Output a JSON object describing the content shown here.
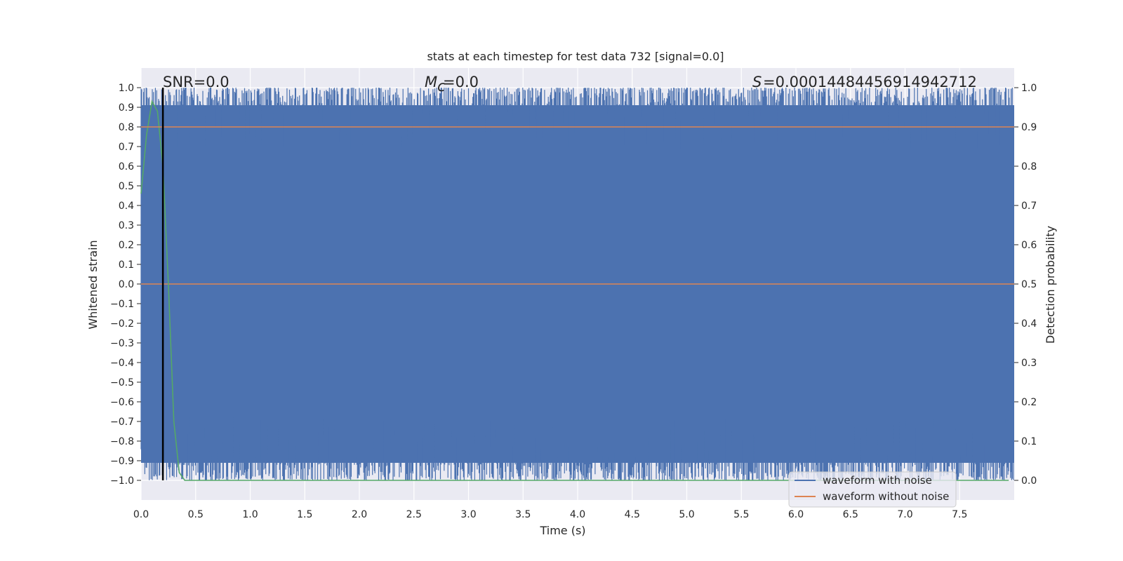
{
  "chart_data": {
    "type": "line",
    "title": "stats at each timestep for test data 732 [signal=0.0]",
    "xlabel": "Time (s)",
    "ylabel": "Whitened strain",
    "y2label": "Detection probability",
    "xlim": [
      0.0,
      8.0
    ],
    "ylim": [
      -1.1,
      1.1
    ],
    "y2lim": [
      -0.05,
      1.05
    ],
    "x_ticks": [
      "0.0",
      "0.5",
      "1.0",
      "1.5",
      "2.0",
      "2.5",
      "3.0",
      "3.5",
      "4.0",
      "4.5",
      "5.0",
      "5.5",
      "6.0",
      "6.5",
      "7.0",
      "7.5"
    ],
    "y_ticks": [
      "1.0",
      "0.9",
      "0.8",
      "0.7",
      "0.6",
      "0.5",
      "0.4",
      "0.3",
      "0.2",
      "0.1",
      "0.0",
      "−0.1",
      "−0.2",
      "−0.3",
      "−0.4",
      "−0.5",
      "−0.6",
      "−0.7",
      "−0.8",
      "−0.9",
      "−1.0"
    ],
    "y2_ticks": [
      "1.0",
      "0.9",
      "0.8",
      "0.7",
      "0.6",
      "0.5",
      "0.4",
      "0.3",
      "0.2",
      "0.1",
      "0.0"
    ],
    "grid": true,
    "annotations": {
      "snr": "SNR=0.0",
      "mc": "=0.0",
      "s": "=0.00014484456914942712"
    },
    "series": [
      {
        "name": "waveform with noise",
        "color": "#4C72B0",
        "kind": "noise",
        "x_range": [
          0.0,
          8.0
        ],
        "y_range": [
          -1.0,
          1.0
        ]
      },
      {
        "name": "waveform without noise",
        "color": "#DD8452",
        "x": [
          0.0,
          8.0
        ],
        "y": [
          0.0,
          0.0
        ]
      },
      {
        "color": "#55A868",
        "axis": "right",
        "x": [
          0.0,
          0.05,
          0.1,
          0.15,
          0.2,
          0.25,
          0.3,
          0.35,
          0.4,
          0.5,
          1.0,
          2.0,
          3.0,
          4.0,
          5.0,
          6.0,
          7.0,
          7.95
        ],
        "y": [
          0.73,
          0.88,
          0.965,
          0.94,
          0.8,
          0.5,
          0.15,
          0.02,
          0.0,
          0.0,
          0.0,
          0.0,
          0.0,
          0.0,
          0.0,
          0.0,
          0.0,
          0.0
        ]
      },
      {
        "color": "#DD8452",
        "axis": "right",
        "x": [
          0.0,
          8.0
        ],
        "y": [
          0.9,
          0.9
        ]
      },
      {
        "color": "#000000",
        "kind": "vline",
        "x": 0.2,
        "y_range": [
          -1.0,
          1.0
        ]
      }
    ],
    "legend": {
      "position": "lower-right",
      "entries": [
        "waveform with noise",
        "waveform without noise"
      ]
    }
  }
}
